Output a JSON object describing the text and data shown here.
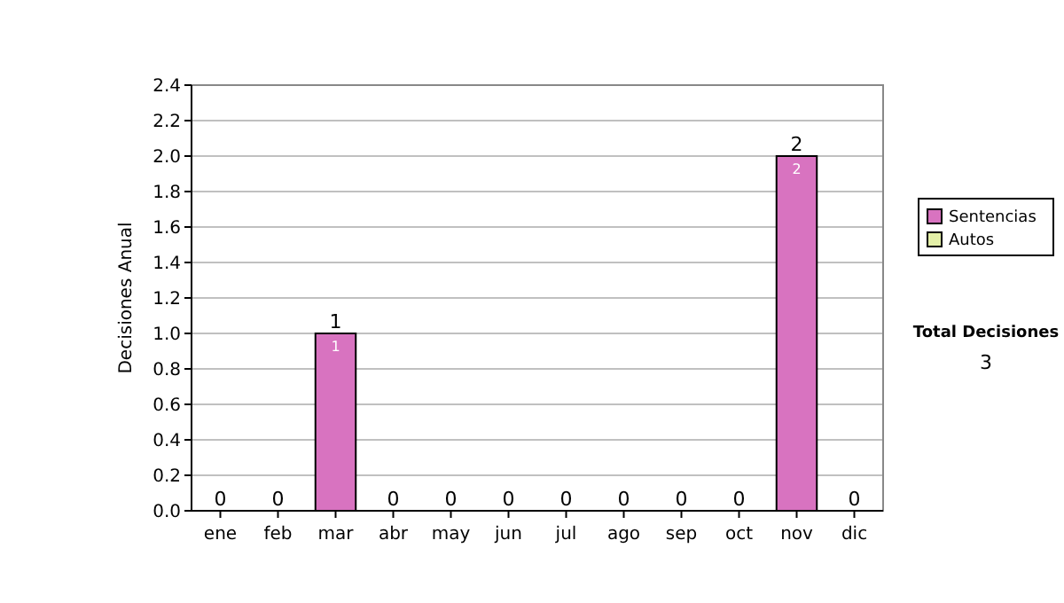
{
  "chart_data": {
    "type": "bar",
    "stacked": true,
    "ylabel": "Decisiones Anual",
    "categories": [
      "ene",
      "feb",
      "mar",
      "abr",
      "may",
      "jun",
      "jul",
      "ago",
      "sep",
      "oct",
      "nov",
      "dic"
    ],
    "series": [
      {
        "name": "Sentencias",
        "color": "#d873c0",
        "values": [
          0,
          0,
          1,
          0,
          0,
          0,
          0,
          0,
          0,
          0,
          2,
          0
        ],
        "value_labels": [
          null,
          null,
          "1",
          null,
          null,
          null,
          null,
          null,
          null,
          null,
          "2",
          null
        ]
      },
      {
        "name": "Autos",
        "color": "#e4f0a8",
        "values": [
          0,
          0,
          0,
          0,
          0,
          0,
          0,
          0,
          0,
          0,
          0,
          0
        ]
      }
    ],
    "totals": [
      "0",
      "0",
      "1",
      "0",
      "0",
      "0",
      "0",
      "0",
      "0",
      "0",
      "2",
      "0"
    ],
    "ylim": [
      0,
      2.4
    ],
    "yticks": [
      {
        "value": 0,
        "label": "0.0"
      },
      {
        "value": 0.2,
        "label": "0.2"
      },
      {
        "value": 0.4,
        "label": "0.4"
      },
      {
        "value": 0.6,
        "label": "0.6"
      },
      {
        "value": 0.8,
        "label": "0.8"
      },
      {
        "value": 1,
        "label": "1.0"
      },
      {
        "value": 1.2,
        "label": "1.2"
      },
      {
        "value": 1.4,
        "label": "1.4"
      },
      {
        "value": 1.6,
        "label": "1.6"
      },
      {
        "value": 1.8,
        "label": "1.8"
      },
      {
        "value": 2,
        "label": "2.0"
      },
      {
        "value": 2.2,
        "label": "2.2"
      },
      {
        "value": 2.4,
        "label": "2.4"
      }
    ],
    "grid": "y",
    "legend": "right",
    "annotations": [
      "Total Decisiones",
      "3"
    ]
  }
}
